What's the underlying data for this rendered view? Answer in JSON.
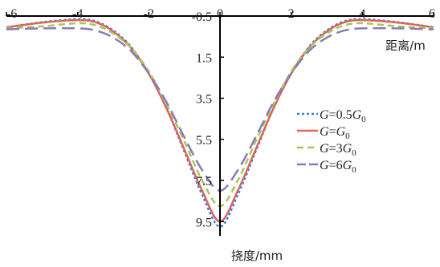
{
  "chart_data": {
    "type": "line",
    "xlabel": "距离/m",
    "ylabel": "挠度/mm",
    "xlim": [
      -6,
      6
    ],
    "ylim": [
      -0.5,
      10.2
    ],
    "y_inverted": true,
    "x_axis_position": "top",
    "x_ticks": [
      -6,
      -4,
      -2,
      0,
      2,
      4,
      6
    ],
    "x_tick_labels": [
      "-6",
      "-4",
      "-2",
      "0",
      "2",
      "4",
      "6"
    ],
    "y_ticks": [
      -0.5,
      1.5,
      3.5,
      5.5,
      7.5,
      9.5
    ],
    "y_tick_labels": [
      "-0.5",
      "1.5",
      "3.5",
      "5.5",
      "7.5",
      "9.5"
    ],
    "grid": false,
    "legend_position": "right",
    "series": [
      {
        "name": "G=0.5G0",
        "legend": {
          "prefix": "G",
          "mid": "=0.5",
          "suffix": "G",
          "sub": "0"
        },
        "color": "#3b7dd8",
        "dash": "dotted",
        "x": [
          -6,
          -5,
          -4,
          -3.5,
          -3,
          -2.5,
          -2,
          -1.5,
          -1,
          -0.5,
          0,
          0.5,
          1,
          1.5,
          2,
          2.5,
          3,
          3.5,
          4,
          5,
          6
        ],
        "y": [
          0.05,
          -0.2,
          -0.35,
          -0.25,
          0.2,
          1.0,
          2.3,
          4.0,
          6.1,
          8.2,
          9.75,
          8.2,
          6.1,
          4.0,
          2.3,
          1.0,
          0.2,
          -0.25,
          -0.35,
          -0.2,
          0.05
        ]
      },
      {
        "name": "G=G0",
        "legend": {
          "prefix": "G",
          "mid": "=",
          "suffix": "G",
          "sub": "0"
        },
        "color": "#d9675a",
        "dash": "solid",
        "x": [
          -6,
          -5,
          -4,
          -3.5,
          -3,
          -2.5,
          -2,
          -1.5,
          -1,
          -0.5,
          0,
          0.5,
          1,
          1.5,
          2,
          2.5,
          3,
          3.5,
          4,
          5,
          6
        ],
        "y": [
          0.05,
          -0.18,
          -0.3,
          -0.2,
          0.25,
          1.05,
          2.3,
          4.0,
          6.0,
          8.0,
          9.5,
          8.0,
          6.0,
          4.0,
          2.3,
          1.05,
          0.25,
          -0.2,
          -0.3,
          -0.18,
          0.05
        ]
      },
      {
        "name": "G=3G0",
        "legend": {
          "prefix": "G",
          "mid": "=3",
          "suffix": "G",
          "sub": "0"
        },
        "color": "#a3c85a",
        "dash": "dashed",
        "x": [
          -6,
          -5,
          -4,
          -3.5,
          -3,
          -2.5,
          -2,
          -1.5,
          -1,
          -0.5,
          0,
          0.5,
          1,
          1.5,
          2,
          2.5,
          3,
          3.5,
          4,
          5,
          6
        ],
        "y": [
          0.1,
          0.0,
          -0.15,
          -0.05,
          0.35,
          1.05,
          2.2,
          3.8,
          5.6,
          7.5,
          8.75,
          7.5,
          5.6,
          3.8,
          2.2,
          1.05,
          0.35,
          -0.05,
          -0.15,
          0.0,
          0.1
        ]
      },
      {
        "name": "G=6G0",
        "legend": {
          "prefix": "G",
          "mid": "=6",
          "suffix": "G",
          "sub": "0"
        },
        "color": "#8a7ab8",
        "dash": "longdash",
        "x": [
          -6,
          -5,
          -4,
          -3.5,
          -3,
          -2.5,
          -2,
          -1.5,
          -1,
          -0.5,
          0,
          0.5,
          1,
          1.5,
          2,
          2.5,
          3,
          3.5,
          4,
          5,
          6
        ],
        "y": [
          0.15,
          0.1,
          0.1,
          0.2,
          0.55,
          1.2,
          2.3,
          3.7,
          5.4,
          7.0,
          8.0,
          7.0,
          5.4,
          3.7,
          2.3,
          1.2,
          0.55,
          0.2,
          0.1,
          0.1,
          0.15
        ]
      }
    ]
  }
}
